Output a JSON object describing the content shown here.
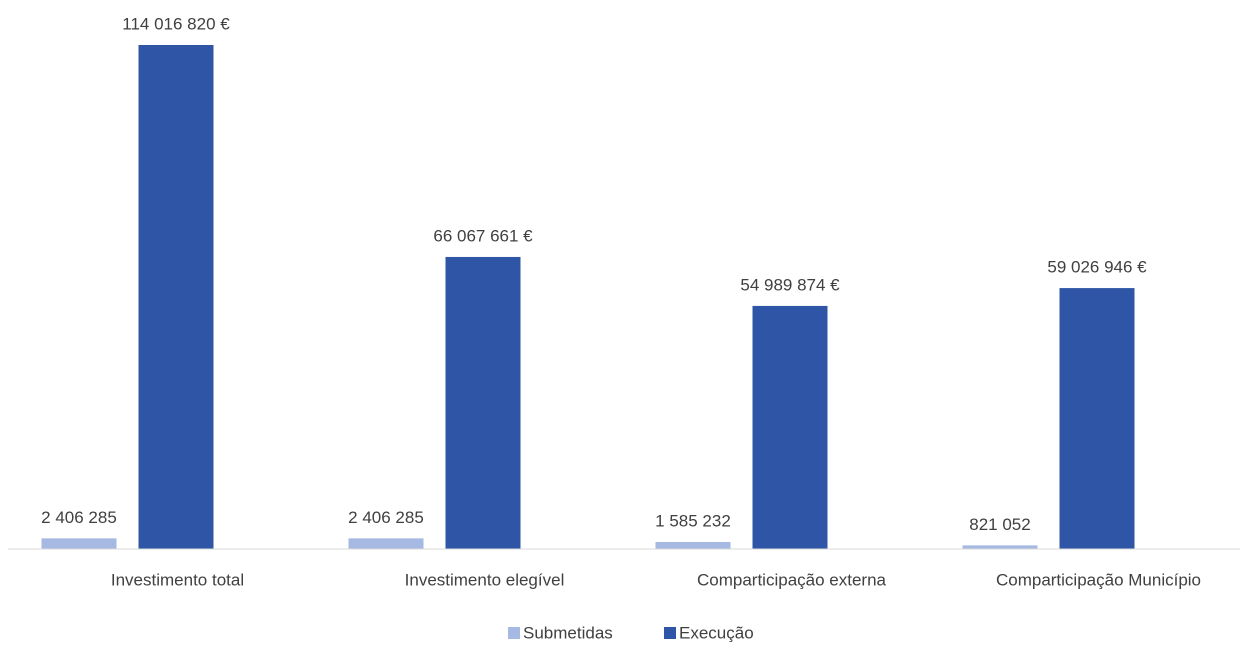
{
  "chart_data": {
    "type": "bar",
    "categories": [
      "Investimento total",
      "Investimento elegível",
      "Comparticipação externa",
      "Comparticipação Município"
    ],
    "series": [
      {
        "name": "Submetidas",
        "color": "#a5b9e3",
        "values": [
          2406285,
          2406285,
          1585232,
          821052
        ],
        "value_labels": [
          "2 406 285",
          "2 406 285",
          "1 585 232",
          "821 052"
        ]
      },
      {
        "name": "Execução",
        "color": "#2e55a6",
        "values": [
          114016820,
          66067661,
          54989874,
          59026946
        ],
        "value_labels": [
          "114 016 820 €",
          "66 067 661 €",
          "54 989 874 €",
          "59 026 946 €"
        ]
      }
    ]
  }
}
